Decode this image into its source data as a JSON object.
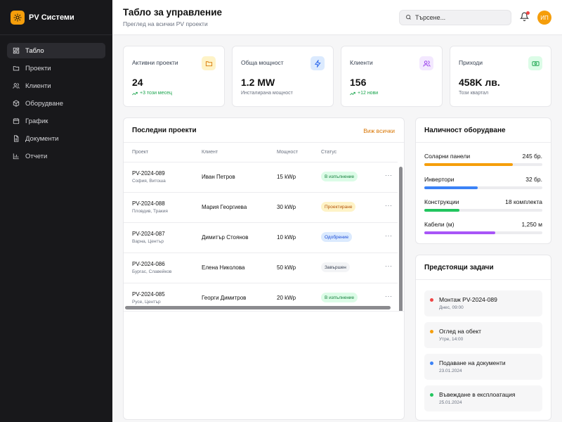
{
  "brand": {
    "name": "PV Системи"
  },
  "nav": [
    {
      "label": "Табло",
      "icon": "dashboard-icon",
      "active": true
    },
    {
      "label": "Проекти",
      "icon": "folder-icon",
      "active": false
    },
    {
      "label": "Клиенти",
      "icon": "users-icon",
      "active": false
    },
    {
      "label": "Оборудване",
      "icon": "box-icon",
      "active": false
    },
    {
      "label": "График",
      "icon": "calendar-icon",
      "active": false
    },
    {
      "label": "Документи",
      "icon": "document-icon",
      "active": false
    },
    {
      "label": "Отчети",
      "icon": "bar-chart-icon",
      "active": false
    }
  ],
  "header": {
    "title": "Табло за управление",
    "subtitle": "Преглед на всички PV проекти",
    "search_placeholder": "Търсене...",
    "avatar_initials": "ИП"
  },
  "stats": [
    {
      "label": "Активни проекти",
      "value": "24",
      "note": "+3 този месец",
      "trend": "up",
      "icon": "folder-icon",
      "icon_bg": "#fef3c7",
      "icon_color": "#d97706"
    },
    {
      "label": "Обща мощност",
      "value": "1.2 MW",
      "note": "Инсталирана мощност",
      "trend": "none",
      "icon": "lightning-icon",
      "icon_bg": "#dbeafe",
      "icon_color": "#2563eb"
    },
    {
      "label": "Клиенти",
      "value": "156",
      "note": "+12 нови",
      "trend": "up",
      "icon": "users-icon",
      "icon_bg": "#f3e8ff",
      "icon_color": "#9333ea"
    },
    {
      "label": "Приходи",
      "value": "458K лв.",
      "note": "Този квартал",
      "trend": "none",
      "icon": "money-icon",
      "icon_bg": "#dcfce7",
      "icon_color": "#16a34a"
    }
  ],
  "projects": {
    "title": "Последни проекти",
    "view_all": "Виж всички",
    "columns": [
      "Проект",
      "Клиент",
      "Мощност",
      "Статус"
    ],
    "rows": [
      {
        "id": "PV-2024-089",
        "location": "София, Витоша",
        "client": "Иван Петров",
        "power": "15 kWp",
        "status": "В изпълнение",
        "status_bg": "#dcfce7",
        "status_color": "#15803d"
      },
      {
        "id": "PV-2024-088",
        "location": "Пловдив, Тракия",
        "client": "Мария Георгиева",
        "power": "30 kWp",
        "status": "Проектиране",
        "status_bg": "#fef3c7",
        "status_color": "#b45309"
      },
      {
        "id": "PV-2024-087",
        "location": "Варна, Център",
        "client": "Димитър Стоянов",
        "power": "10 kWp",
        "status": "Одобрение",
        "status_bg": "#dbeafe",
        "status_color": "#1d4ed8"
      },
      {
        "id": "PV-2024-086",
        "location": "Бургас, Славейков",
        "client": "Елена Николова",
        "power": "50 kWp",
        "status": "Завършен",
        "status_bg": "#f3f4f6",
        "status_color": "#374151"
      },
      {
        "id": "PV-2024-085",
        "location": "Русе, Център",
        "client": "Георги Димитров",
        "power": "20 kWp",
        "status": "В изпълнение",
        "status_bg": "#dcfce7",
        "status_color": "#15803d"
      }
    ]
  },
  "equipment": {
    "title": "Наличност оборудване",
    "items": [
      {
        "name": "Соларни панели",
        "count": "245 бр.",
        "level": 0.75,
        "color": "#f59e0b"
      },
      {
        "name": "Инвертори",
        "count": "32 бр.",
        "level": 0.45,
        "color": "#3b82f6"
      },
      {
        "name": "Конструкции",
        "count": "18 комплекта",
        "level": 0.3,
        "color": "#22c55e"
      },
      {
        "name": "Кабели (м)",
        "count": "1,250 м",
        "level": 0.6,
        "color": "#a855f7"
      }
    ]
  },
  "tasks": {
    "title": "Предстоящи задачи",
    "items": [
      {
        "title": "Монтаж PV-2024-089",
        "date": "Днес, 09:00",
        "color": "#ef4444"
      },
      {
        "title": "Оглед на обект",
        "date": "Утре, 14:00",
        "color": "#f59e0b"
      },
      {
        "title": "Подаване на документи",
        "date": "23.01.2024",
        "color": "#3b82f6"
      },
      {
        "title": "Въвеждане в експлоатация",
        "date": "25.01.2024",
        "color": "#22c55e"
      }
    ]
  }
}
